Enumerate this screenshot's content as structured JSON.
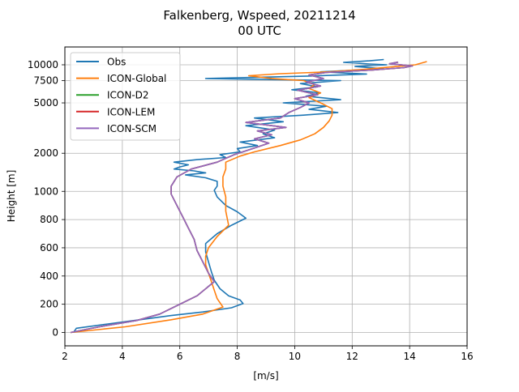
{
  "chart_data": {
    "type": "line",
    "title": "Falkenberg, Wspeed, 20211214",
    "subtitle": "00 UTC",
    "xlabel": "[m/s]",
    "ylabel": "Height [m]",
    "xlim": [
      2,
      16
    ],
    "xticks": [
      "2",
      "4",
      "6",
      "8",
      "10",
      "12",
      "14",
      "16"
    ],
    "yscale": "piecewise: linear below 1000 m, logarithmic above 1000 m",
    "yticks": [
      "0",
      "200",
      "400",
      "600",
      "800",
      "1000",
      "2000",
      "5000",
      "7500",
      "10000"
    ],
    "grid": true,
    "legend_position": "top-left",
    "series": [
      {
        "name": "Obs",
        "color": "#1f77b4",
        "points": [
          [
            2.3,
            0
          ],
          [
            2.4,
            30
          ],
          [
            3.5,
            60
          ],
          [
            4.6,
            90
          ],
          [
            5.7,
            120
          ],
          [
            6.8,
            145
          ],
          [
            7.8,
            175
          ],
          [
            8.2,
            205
          ],
          [
            8.1,
            230
          ],
          [
            7.7,
            260
          ],
          [
            7.4,
            310
          ],
          [
            7.2,
            370
          ],
          [
            7.1,
            430
          ],
          [
            7.0,
            500
          ],
          [
            6.9,
            570
          ],
          [
            6.9,
            630
          ],
          [
            7.3,
            700
          ],
          [
            7.8,
            760
          ],
          [
            8.3,
            810
          ],
          [
            8.0,
            855
          ],
          [
            7.6,
            900
          ],
          [
            7.3,
            960
          ],
          [
            7.2,
            1020
          ],
          [
            7.3,
            1100
          ],
          [
            7.3,
            1200
          ],
          [
            6.9,
            1280
          ],
          [
            6.2,
            1350
          ],
          [
            6.9,
            1400
          ],
          [
            6.5,
            1450
          ],
          [
            5.8,
            1500
          ],
          [
            6.0,
            1560
          ],
          [
            6.3,
            1620
          ],
          [
            5.8,
            1700
          ],
          [
            6.6,
            1780
          ],
          [
            7.6,
            1850
          ],
          [
            7.4,
            1950
          ],
          [
            8.1,
            2050
          ],
          [
            8.0,
            2180
          ],
          [
            8.7,
            2300
          ],
          [
            8.1,
            2450
          ],
          [
            9.3,
            2650
          ],
          [
            8.9,
            2850
          ],
          [
            9.3,
            3050
          ],
          [
            8.3,
            3300
          ],
          [
            9.6,
            3550
          ],
          [
            8.6,
            3800
          ],
          [
            10.3,
            4000
          ],
          [
            11.5,
            4200
          ],
          [
            10.5,
            4450
          ],
          [
            11.1,
            4700
          ],
          [
            9.6,
            5000
          ],
          [
            11.6,
            5300
          ],
          [
            10.4,
            5650
          ],
          [
            10.9,
            6000
          ],
          [
            9.9,
            6350
          ],
          [
            10.8,
            6700
          ],
          [
            10.2,
            7100
          ],
          [
            11.6,
            7500
          ],
          [
            6.9,
            7800
          ],
          [
            10.5,
            8150
          ],
          [
            12.5,
            8450
          ],
          [
            10.9,
            8800
          ],
          [
            13.1,
            9300
          ],
          [
            12.1,
            9700
          ],
          [
            13.2,
            10000
          ],
          [
            12.6,
            10150
          ],
          [
            11.7,
            10450
          ],
          [
            12.6,
            10750
          ],
          [
            13.1,
            11000
          ]
        ]
      },
      {
        "name": "ICON-Global",
        "color": "#ff7f0e",
        "points": [
          [
            2.2,
            0
          ],
          [
            4.1,
            40
          ],
          [
            5.7,
            90
          ],
          [
            6.8,
            130
          ],
          [
            7.5,
            180
          ],
          [
            7.3,
            240
          ],
          [
            7.2,
            300
          ],
          [
            7.1,
            360
          ],
          [
            7.0,
            420
          ],
          [
            6.9,
            480
          ],
          [
            6.9,
            540
          ],
          [
            7.0,
            600
          ],
          [
            7.3,
            680
          ],
          [
            7.7,
            760
          ],
          [
            7.6,
            860
          ],
          [
            7.6,
            960
          ],
          [
            7.5,
            1100
          ],
          [
            7.5,
            1300
          ],
          [
            7.6,
            1500
          ],
          [
            7.6,
            1700
          ],
          [
            8.1,
            1900
          ],
          [
            8.6,
            2050
          ],
          [
            9.5,
            2300
          ],
          [
            10.2,
            2550
          ],
          [
            10.7,
            2850
          ],
          [
            11.0,
            3200
          ],
          [
            11.2,
            3600
          ],
          [
            11.3,
            4000
          ],
          [
            11.3,
            4500
          ],
          [
            10.9,
            5000
          ],
          [
            10.5,
            5500
          ],
          [
            10.9,
            6000
          ],
          [
            10.5,
            6500
          ],
          [
            10.7,
            7000
          ],
          [
            10.3,
            7500
          ],
          [
            9.2,
            7800
          ],
          [
            8.4,
            8200
          ],
          [
            9.5,
            8500
          ],
          [
            11.2,
            8800
          ],
          [
            12.4,
            9200
          ],
          [
            13.3,
            9600
          ],
          [
            14.2,
            10000
          ],
          [
            14.6,
            10600
          ]
        ]
      },
      {
        "name": "ICON-D2",
        "color": "#2ca02c",
        "points": [
          [
            2.2,
            0
          ],
          [
            3.2,
            40
          ],
          [
            4.5,
            85
          ],
          [
            5.3,
            130
          ],
          [
            5.9,
            190
          ],
          [
            6.6,
            260
          ],
          [
            7.2,
            360
          ],
          [
            7.0,
            420
          ],
          [
            6.8,
            500
          ],
          [
            6.6,
            580
          ],
          [
            6.5,
            660
          ],
          [
            6.3,
            740
          ],
          [
            6.1,
            820
          ],
          [
            5.9,
            900
          ],
          [
            5.7,
            980
          ],
          [
            5.7,
            1100
          ],
          [
            5.9,
            1300
          ],
          [
            6.4,
            1500
          ],
          [
            7.3,
            1700
          ],
          [
            7.9,
            1950
          ],
          [
            8.6,
            2200
          ],
          [
            9.1,
            2400
          ],
          [
            8.6,
            2600
          ],
          [
            9.2,
            2800
          ],
          [
            8.7,
            3000
          ],
          [
            9.7,
            3200
          ],
          [
            8.3,
            3500
          ],
          [
            9.5,
            3800
          ],
          [
            9.8,
            4200
          ],
          [
            10.2,
            4600
          ],
          [
            10.5,
            5000
          ],
          [
            10.0,
            5400
          ],
          [
            10.8,
            5800
          ],
          [
            10.1,
            6300
          ],
          [
            10.9,
            6800
          ],
          [
            10.4,
            7300
          ],
          [
            11.0,
            7800
          ],
          [
            10.5,
            8300
          ],
          [
            11.1,
            8700
          ],
          [
            12.7,
            9100
          ],
          [
            13.8,
            9500
          ],
          [
            14.1,
            9800
          ],
          [
            13.3,
            10200
          ],
          [
            13.6,
            10500
          ]
        ]
      },
      {
        "name": "ICON-LEM",
        "color": "#d62728",
        "points": [
          [
            2.2,
            0
          ],
          [
            3.2,
            40
          ],
          [
            4.5,
            85
          ],
          [
            5.3,
            130
          ],
          [
            5.9,
            190
          ],
          [
            6.6,
            260
          ],
          [
            7.2,
            360
          ],
          [
            7.0,
            420
          ],
          [
            6.8,
            500
          ],
          [
            6.6,
            580
          ],
          [
            6.5,
            660
          ],
          [
            6.3,
            740
          ],
          [
            6.1,
            820
          ],
          [
            5.9,
            900
          ],
          [
            5.7,
            980
          ],
          [
            5.7,
            1100
          ],
          [
            5.9,
            1300
          ],
          [
            6.4,
            1500
          ],
          [
            7.3,
            1700
          ],
          [
            7.9,
            1950
          ],
          [
            8.6,
            2200
          ],
          [
            9.1,
            2400
          ],
          [
            8.6,
            2600
          ],
          [
            9.2,
            2800
          ],
          [
            8.7,
            3000
          ],
          [
            9.7,
            3200
          ],
          [
            8.3,
            3500
          ],
          [
            9.5,
            3800
          ],
          [
            9.8,
            4200
          ],
          [
            10.2,
            4600
          ],
          [
            10.5,
            5000
          ],
          [
            10.0,
            5400
          ],
          [
            10.8,
            5800
          ],
          [
            10.1,
            6300
          ],
          [
            10.9,
            6800
          ],
          [
            10.4,
            7300
          ],
          [
            11.0,
            7800
          ],
          [
            10.5,
            8300
          ],
          [
            11.1,
            8700
          ],
          [
            12.7,
            9100
          ],
          [
            13.8,
            9500
          ],
          [
            14.1,
            9800
          ],
          [
            13.3,
            10200
          ],
          [
            13.6,
            10500
          ]
        ]
      },
      {
        "name": "ICON-SCM",
        "color": "#9467bd",
        "points": [
          [
            2.2,
            0
          ],
          [
            3.2,
            40
          ],
          [
            4.5,
            85
          ],
          [
            5.3,
            130
          ],
          [
            5.9,
            190
          ],
          [
            6.6,
            260
          ],
          [
            7.2,
            360
          ],
          [
            7.0,
            420
          ],
          [
            6.8,
            500
          ],
          [
            6.6,
            580
          ],
          [
            6.5,
            660
          ],
          [
            6.3,
            740
          ],
          [
            6.1,
            820
          ],
          [
            5.9,
            900
          ],
          [
            5.7,
            980
          ],
          [
            5.7,
            1100
          ],
          [
            5.9,
            1300
          ],
          [
            6.4,
            1500
          ],
          [
            7.3,
            1700
          ],
          [
            7.9,
            1950
          ],
          [
            8.6,
            2200
          ],
          [
            9.1,
            2400
          ],
          [
            8.6,
            2600
          ],
          [
            9.2,
            2800
          ],
          [
            8.7,
            3000
          ],
          [
            9.7,
            3200
          ],
          [
            8.3,
            3500
          ],
          [
            9.5,
            3800
          ],
          [
            9.8,
            4200
          ],
          [
            10.2,
            4600
          ],
          [
            10.5,
            5000
          ],
          [
            10.0,
            5400
          ],
          [
            10.8,
            5800
          ],
          [
            10.1,
            6300
          ],
          [
            10.9,
            6800
          ],
          [
            10.4,
            7300
          ],
          [
            11.0,
            7800
          ],
          [
            10.5,
            8300
          ],
          [
            11.1,
            8700
          ],
          [
            12.7,
            9100
          ],
          [
            13.8,
            9500
          ],
          [
            14.1,
            9800
          ],
          [
            13.3,
            10200
          ],
          [
            13.6,
            10500
          ]
        ]
      }
    ]
  }
}
